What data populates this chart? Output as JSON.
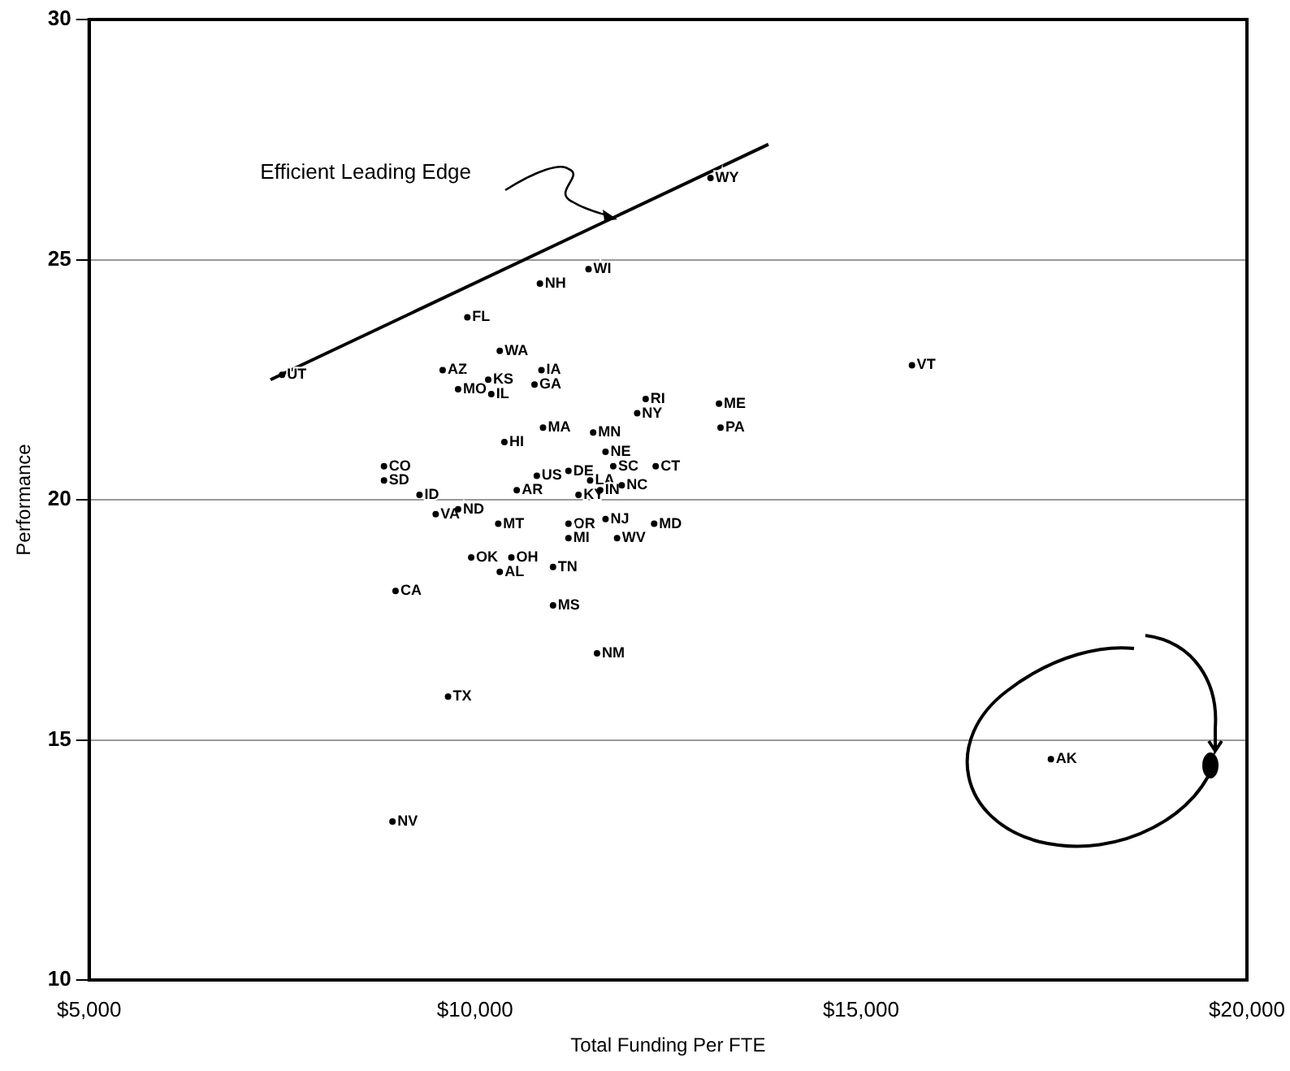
{
  "chart_data": {
    "type": "scatter",
    "xlabel": "Total Funding Per FTE",
    "ylabel": "Performance",
    "xlim": [
      5000,
      20000
    ],
    "xticks": [
      {
        "value": 5000,
        "label": "$5,000"
      },
      {
        "value": 10000,
        "label": "$10,000"
      },
      {
        "value": 15000,
        "label": "$15,000"
      },
      {
        "value": 20000,
        "label": "$20,000"
      }
    ],
    "ylim": [
      10,
      30
    ],
    "yticks": [
      10,
      15,
      20,
      25,
      30
    ],
    "grid": "y",
    "legend": false,
    "marker": "circle",
    "annotations": [
      "Efficient Leading Edge"
    ],
    "series": [
      {
        "type": "line",
        "marker": "none",
        "color": "#000000",
        "x": [
          7350,
          13800
        ],
        "values": [
          22.5,
          27.4
        ]
      },
      {
        "name": "UT",
        "color": "#000000",
        "x": [
          7500
        ],
        "values": [
          22.6
        ]
      },
      {
        "name": "WY",
        "color": "#000000",
        "x": [
          13050
        ],
        "values": [
          26.7
        ]
      },
      {
        "name": "WI",
        "color": "#000000",
        "x": [
          11470
        ],
        "values": [
          24.8
        ]
      },
      {
        "name": "NH",
        "color": "#000000",
        "x": [
          10840
        ],
        "values": [
          24.5
        ]
      },
      {
        "name": "FL",
        "color": "#000000",
        "x": [
          9900
        ],
        "values": [
          23.8
        ]
      },
      {
        "name": "WA",
        "color": "#000000",
        "x": [
          10320
        ],
        "values": [
          23.1
        ]
      },
      {
        "name": "AZ",
        "color": "#000000",
        "x": [
          9580
        ],
        "values": [
          22.7
        ]
      },
      {
        "name": "KS",
        "color": "#000000",
        "x": [
          10170
        ],
        "values": [
          22.5
        ]
      },
      {
        "name": "IA",
        "color": "#000000",
        "x": [
          10860
        ],
        "values": [
          22.7
        ]
      },
      {
        "name": "MO",
        "color": "#000000",
        "x": [
          9780
        ],
        "values": [
          22.3
        ]
      },
      {
        "name": "IL",
        "color": "#000000",
        "x": [
          10210
        ],
        "values": [
          22.2
        ]
      },
      {
        "name": "GA",
        "color": "#000000",
        "x": [
          10770
        ],
        "values": [
          22.4
        ]
      },
      {
        "name": "VT",
        "color": "#000000",
        "x": [
          15660
        ],
        "values": [
          22.8
        ]
      },
      {
        "name": "RI",
        "color": "#000000",
        "x": [
          12210
        ],
        "values": [
          22.1
        ]
      },
      {
        "name": "NY",
        "color": "#000000",
        "x": [
          12100
        ],
        "values": [
          21.8
        ]
      },
      {
        "name": "ME",
        "color": "#000000",
        "x": [
          13160
        ],
        "values": [
          22.0
        ]
      },
      {
        "name": "PA",
        "color": "#000000",
        "x": [
          13180
        ],
        "values": [
          21.5
        ]
      },
      {
        "name": "MA",
        "color": "#000000",
        "x": [
          10880
        ],
        "values": [
          21.5
        ]
      },
      {
        "name": "MN",
        "color": "#000000",
        "x": [
          11530
        ],
        "values": [
          21.4
        ]
      },
      {
        "name": "HI",
        "color": "#000000",
        "x": [
          10380
        ],
        "values": [
          21.2
        ]
      },
      {
        "name": "CO",
        "color": "#000000",
        "x": [
          8820
        ],
        "values": [
          20.7
        ]
      },
      {
        "name": "SD",
        "color": "#000000",
        "x": [
          8820
        ],
        "values": [
          20.4
        ]
      },
      {
        "name": "NE",
        "color": "#000000",
        "x": [
          11690
        ],
        "values": [
          21.0
        ]
      },
      {
        "name": "US",
        "color": "#000000",
        "x": [
          10800
        ],
        "values": [
          20.5
        ]
      },
      {
        "name": "DE",
        "color": "#000000",
        "x": [
          11210
        ],
        "values": [
          20.6
        ]
      },
      {
        "name": "LA",
        "color": "#000000",
        "x": [
          11490
        ],
        "values": [
          20.4
        ]
      },
      {
        "name": "SC",
        "color": "#000000",
        "x": [
          11790
        ],
        "values": [
          20.7
        ]
      },
      {
        "name": "CT",
        "color": "#000000",
        "x": [
          12340
        ],
        "values": [
          20.7
        ]
      },
      {
        "name": "NC",
        "color": "#000000",
        "x": [
          11900
        ],
        "values": [
          20.3
        ]
      },
      {
        "name": "AR",
        "color": "#000000",
        "x": [
          10540
        ],
        "values": [
          20.2
        ]
      },
      {
        "name": "KY",
        "color": "#000000",
        "x": [
          11340
        ],
        "values": [
          20.1
        ]
      },
      {
        "name": "IN",
        "color": "#000000",
        "x": [
          11620
        ],
        "values": [
          20.2
        ]
      },
      {
        "name": "ID",
        "color": "#000000",
        "x": [
          9280
        ],
        "values": [
          20.1
        ]
      },
      {
        "name": "ND",
        "color": "#000000",
        "x": [
          9780
        ],
        "values": [
          19.8
        ]
      },
      {
        "name": "VA",
        "color": "#000000",
        "x": [
          9490
        ],
        "values": [
          19.7
        ]
      },
      {
        "name": "MT",
        "color": "#000000",
        "x": [
          10300
        ],
        "values": [
          19.5
        ]
      },
      {
        "name": "NJ",
        "color": "#000000",
        "x": [
          11690
        ],
        "values": [
          19.6
        ]
      },
      {
        "name": "MD",
        "color": "#000000",
        "x": [
          12320
        ],
        "values": [
          19.5
        ]
      },
      {
        "name": "OR",
        "color": "#000000",
        "x": [
          11210
        ],
        "values": [
          19.5
        ]
      },
      {
        "name": "MI",
        "color": "#000000",
        "x": [
          11210
        ],
        "values": [
          19.2
        ]
      },
      {
        "name": "WV",
        "color": "#000000",
        "x": [
          11840
        ],
        "values": [
          19.2
        ]
      },
      {
        "name": "OK",
        "color": "#000000",
        "x": [
          9950
        ],
        "values": [
          18.8
        ]
      },
      {
        "name": "OH",
        "color": "#000000",
        "x": [
          10470
        ],
        "values": [
          18.8
        ]
      },
      {
        "name": "AL",
        "color": "#000000",
        "x": [
          10320
        ],
        "values": [
          18.5
        ]
      },
      {
        "name": "TN",
        "color": "#000000",
        "x": [
          11010
        ],
        "values": [
          18.6
        ]
      },
      {
        "name": "CA",
        "color": "#000000",
        "x": [
          8970
        ],
        "values": [
          18.1
        ]
      },
      {
        "name": "MS",
        "color": "#000000",
        "x": [
          11010
        ],
        "values": [
          17.8
        ]
      },
      {
        "name": "NM",
        "color": "#000000",
        "x": [
          11580
        ],
        "values": [
          16.8
        ]
      },
      {
        "name": "TX",
        "color": "#000000",
        "x": [
          9650
        ],
        "values": [
          15.9
        ]
      },
      {
        "name": "NV",
        "color": "#000000",
        "x": [
          8930
        ],
        "values": [
          13.3
        ]
      },
      {
        "name": "AK",
        "color": "#000000",
        "x": [
          17460
        ],
        "values": [
          14.6
        ]
      }
    ]
  }
}
